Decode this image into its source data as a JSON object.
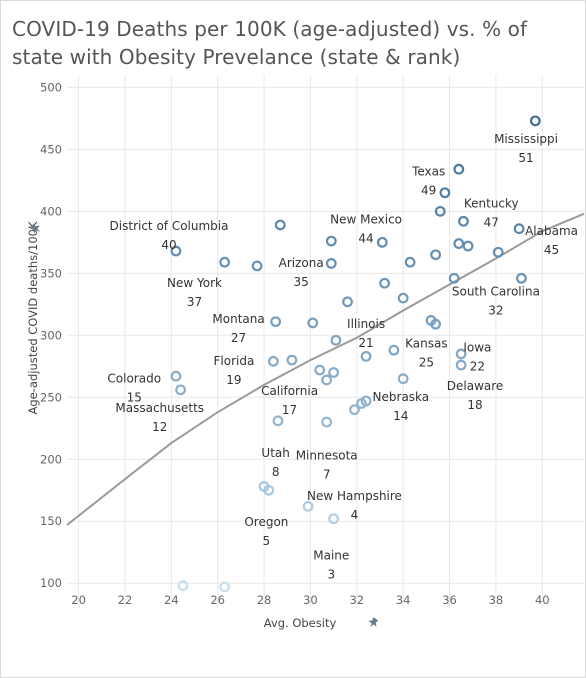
{
  "title": "COVID-19 Deaths per 100K (age-adjusted) vs. % of state with Obesity Prevelance (state & rank)",
  "chart_data": {
    "type": "scatter",
    "title": "COVID-19 Deaths per 100K (age-adjusted) vs. % of state with Obesity Prevelance (state & rank)",
    "xlabel": "Avg. Obesity",
    "ylabel": "Age-adjusted COVID deaths/100K",
    "xlim": [
      19.5,
      41.8
    ],
    "ylim": [
      80,
      510
    ],
    "xticks": [
      "20",
      "22",
      "24",
      "26",
      "28",
      "30",
      "32",
      "34",
      "36",
      "38",
      "40"
    ],
    "yticks": [
      "100",
      "150",
      "200",
      "250",
      "300",
      "350",
      "400",
      "450",
      "500"
    ],
    "grid": true,
    "colors": {
      "low": "#c6dff0",
      "high": "#3d6d99",
      "trend": "#9a9a9a",
      "grid": "#e8e8e8"
    },
    "points": [
      {
        "x": 39.7,
        "y": 473
      },
      {
        "x": 36.4,
        "y": 434
      },
      {
        "x": 35.8,
        "y": 415
      },
      {
        "x": 35.6,
        "y": 400
      },
      {
        "x": 36.6,
        "y": 392
      },
      {
        "x": 28.7,
        "y": 389
      },
      {
        "x": 39.0,
        "y": 386
      },
      {
        "x": 30.9,
        "y": 376
      },
      {
        "x": 33.1,
        "y": 375
      },
      {
        "x": 36.4,
        "y": 374
      },
      {
        "x": 36.8,
        "y": 372
      },
      {
        "x": 24.2,
        "y": 368
      },
      {
        "x": 38.1,
        "y": 367
      },
      {
        "x": 35.4,
        "y": 365
      },
      {
        "x": 26.3,
        "y": 359
      },
      {
        "x": 30.9,
        "y": 358
      },
      {
        "x": 34.3,
        "y": 359
      },
      {
        "x": 27.7,
        "y": 356
      },
      {
        "x": 36.2,
        "y": 346
      },
      {
        "x": 39.1,
        "y": 346
      },
      {
        "x": 33.2,
        "y": 342
      },
      {
        "x": 34.0,
        "y": 330
      },
      {
        "x": 31.6,
        "y": 327
      },
      {
        "x": 28.5,
        "y": 311
      },
      {
        "x": 30.1,
        "y": 310
      },
      {
        "x": 35.2,
        "y": 312
      },
      {
        "x": 35.4,
        "y": 309
      },
      {
        "x": 31.1,
        "y": 296
      },
      {
        "x": 33.6,
        "y": 288
      },
      {
        "x": 36.5,
        "y": 285
      },
      {
        "x": 32.4,
        "y": 283
      },
      {
        "x": 29.2,
        "y": 280
      },
      {
        "x": 28.4,
        "y": 279
      },
      {
        "x": 36.5,
        "y": 276
      },
      {
        "x": 30.4,
        "y": 272
      },
      {
        "x": 31.0,
        "y": 270
      },
      {
        "x": 24.2,
        "y": 267
      },
      {
        "x": 34.0,
        "y": 265
      },
      {
        "x": 30.7,
        "y": 264
      },
      {
        "x": 24.4,
        "y": 256
      },
      {
        "x": 32.4,
        "y": 247
      },
      {
        "x": 32.2,
        "y": 245
      },
      {
        "x": 31.9,
        "y": 240
      },
      {
        "x": 28.6,
        "y": 231
      },
      {
        "x": 30.7,
        "y": 230
      },
      {
        "x": 28.0,
        "y": 178
      },
      {
        "x": 28.2,
        "y": 175
      },
      {
        "x": 29.9,
        "y": 162
      },
      {
        "x": 31.0,
        "y": 152
      },
      {
        "x": 24.5,
        "y": 98
      },
      {
        "x": 26.3,
        "y": 97
      }
    ],
    "trendline": [
      {
        "x": 19.5,
        "y": 147
      },
      {
        "x": 22,
        "y": 184
      },
      {
        "x": 24,
        "y": 213
      },
      {
        "x": 26,
        "y": 238
      },
      {
        "x": 28,
        "y": 260
      },
      {
        "x": 30,
        "y": 280
      },
      {
        "x": 32,
        "y": 298
      },
      {
        "x": 34,
        "y": 320
      },
      {
        "x": 36,
        "y": 341
      },
      {
        "x": 38,
        "y": 362
      },
      {
        "x": 40,
        "y": 384
      },
      {
        "x": 41.8,
        "y": 398
      }
    ],
    "annotations": [
      {
        "name": "Mississippi",
        "rank": "51",
        "x": 39.3,
        "y": 455
      },
      {
        "name": "Texas",
        "rank": "49",
        "x": 35.1,
        "y": 429
      },
      {
        "name": "Kentucky",
        "rank": "47",
        "x": 37.8,
        "y": 403
      },
      {
        "name": "New Mexico",
        "rank": "44",
        "x": 32.4,
        "y": 390
      },
      {
        "name": "Alabama",
        "rank": "45",
        "x": 40.4,
        "y": 381
      },
      {
        "name": "District of Columbia",
        "rank": "40",
        "x": 23.9,
        "y": 385
      },
      {
        "name": "Arizona",
        "rank": "35",
        "x": 29.6,
        "y": 355
      },
      {
        "name": "New York",
        "rank": "37",
        "x": 25.0,
        "y": 339
      },
      {
        "name": "South Carolina",
        "rank": "32",
        "x": 38.0,
        "y": 332
      },
      {
        "name": "Montana",
        "rank": "27",
        "x": 26.9,
        "y": 310
      },
      {
        "name": "Illinois",
        "rank": "21",
        "x": 32.4,
        "y": 306
      },
      {
        "name": "Kansas",
        "rank": "25",
        "x": 35.0,
        "y": 290
      },
      {
        "name": "Iowa",
        "rank": "22",
        "x": 37.2,
        "y": 287
      },
      {
        "name": "Florida",
        "rank": "19",
        "x": 26.7,
        "y": 276
      },
      {
        "name": "Colorado",
        "rank": "15",
        "x": 22.4,
        "y": 262
      },
      {
        "name": "California",
        "rank": "17",
        "x": 29.1,
        "y": 252
      },
      {
        "name": "Delaware",
        "rank": "18",
        "x": 37.1,
        "y": 256
      },
      {
        "name": "Massachusetts",
        "rank": "12",
        "x": 23.5,
        "y": 238
      },
      {
        "name": "Nebraska",
        "rank": "14",
        "x": 33.9,
        "y": 247
      },
      {
        "name": "Utah",
        "rank": "8",
        "x": 28.5,
        "y": 202
      },
      {
        "name": "Minnesota",
        "rank": "7",
        "x": 30.7,
        "y": 200
      },
      {
        "name": "New Hampshire",
        "rank": "4",
        "x": 31.9,
        "y": 167
      },
      {
        "name": "Oregon",
        "rank": "5",
        "x": 28.1,
        "y": 146
      },
      {
        "name": "Maine",
        "rank": "3",
        "x": 30.9,
        "y": 119
      }
    ]
  }
}
